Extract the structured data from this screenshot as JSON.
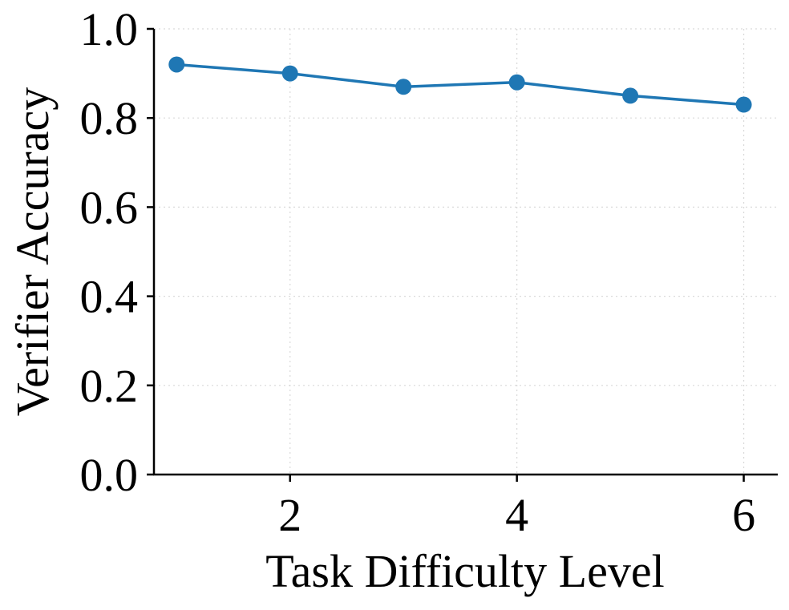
{
  "chart_data": {
    "type": "line",
    "xlabel": "Task Difficulty Level",
    "ylabel": "Verifier Accuracy",
    "xlim": [
      0.8,
      6.3
    ],
    "ylim": [
      0.0,
      1.0
    ],
    "xticks": [
      2,
      4,
      6
    ],
    "xtick_labels": [
      "2",
      "4",
      "6"
    ],
    "yticks": [
      0.0,
      0.2,
      0.4,
      0.6,
      0.8,
      1.0
    ],
    "ytick_labels": [
      "0.0",
      "0.2",
      "0.4",
      "0.6",
      "0.8",
      "1.0"
    ],
    "grid": true,
    "series": [
      {
        "color": "#1f77b4",
        "marker": "circle",
        "x": [
          1,
          2,
          3,
          4,
          5,
          6
        ],
        "y": [
          0.92,
          0.9,
          0.87,
          0.88,
          0.85,
          0.83
        ]
      }
    ]
  }
}
